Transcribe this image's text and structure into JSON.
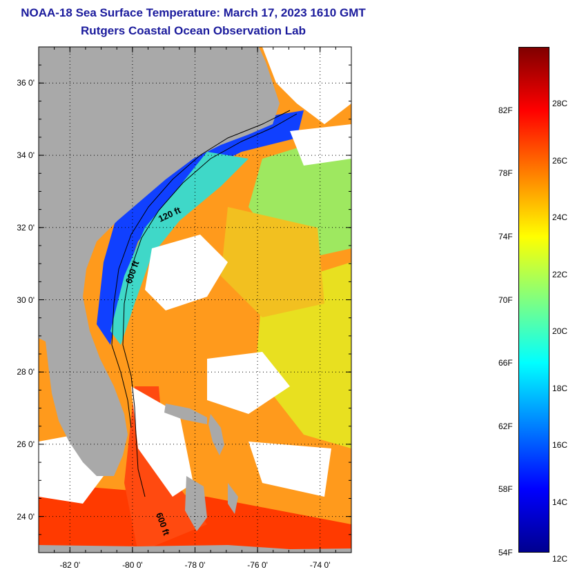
{
  "title": {
    "line1": "NOAA-18 Sea Surface Temperature:  March 17, 2023 1610 GMT",
    "line2": "Rutgers Coastal Ocean Observation Lab"
  },
  "map": {
    "lat_range": [
      23,
      37
    ],
    "lon_range": [
      -83,
      -73
    ],
    "lat_ticks": [
      {
        "value": 24,
        "label": "24 0'"
      },
      {
        "value": 26,
        "label": "26 0'"
      },
      {
        "value": 28,
        "label": "28 0'"
      },
      {
        "value": 30,
        "label": "30 0'"
      },
      {
        "value": 32,
        "label": "32 0'"
      },
      {
        "value": 34,
        "label": "34 0'"
      },
      {
        "value": 36,
        "label": "36 0'"
      }
    ],
    "lon_ticks": [
      {
        "value": -82,
        "label": "-82 0'"
      },
      {
        "value": -80,
        "label": "-80 0'"
      },
      {
        "value": -78,
        "label": "-78 0'"
      },
      {
        "value": -76,
        "label": "-76 0'"
      },
      {
        "value": -74,
        "label": "-74 0'"
      }
    ],
    "isobath_labels": [
      "120 ft",
      "600 ft",
      "600 ft"
    ],
    "colors": {
      "land": "#a9a9a9",
      "cloud": "#ffffff",
      "grid": "#000000"
    }
  },
  "colorbar": {
    "range_f": [
      54,
      86
    ],
    "f_ticks": [
      {
        "value": 54,
        "label": "54F"
      },
      {
        "value": 58,
        "label": "58F"
      },
      {
        "value": 62,
        "label": "62F"
      },
      {
        "value": 66,
        "label": "66F"
      },
      {
        "value": 70,
        "label": "70F"
      },
      {
        "value": 74,
        "label": "74F"
      },
      {
        "value": 78,
        "label": "78F"
      },
      {
        "value": 82,
        "label": "82F"
      }
    ],
    "c_ticks": [
      {
        "value": 12,
        "label": "12C"
      },
      {
        "value": 14,
        "label": "14C"
      },
      {
        "value": 16,
        "label": "16C"
      },
      {
        "value": 18,
        "label": "18C"
      },
      {
        "value": 20,
        "label": "20C"
      },
      {
        "value": 22,
        "label": "22C"
      },
      {
        "value": 24,
        "label": "24C"
      },
      {
        "value": 26,
        "label": "26C"
      },
      {
        "value": 28,
        "label": "28C"
      }
    ],
    "gradient": [
      "#00008f",
      "#0000ff",
      "#0080ff",
      "#00ffff",
      "#80ff80",
      "#ffff00",
      "#ff8000",
      "#ff0000",
      "#800000"
    ]
  }
}
